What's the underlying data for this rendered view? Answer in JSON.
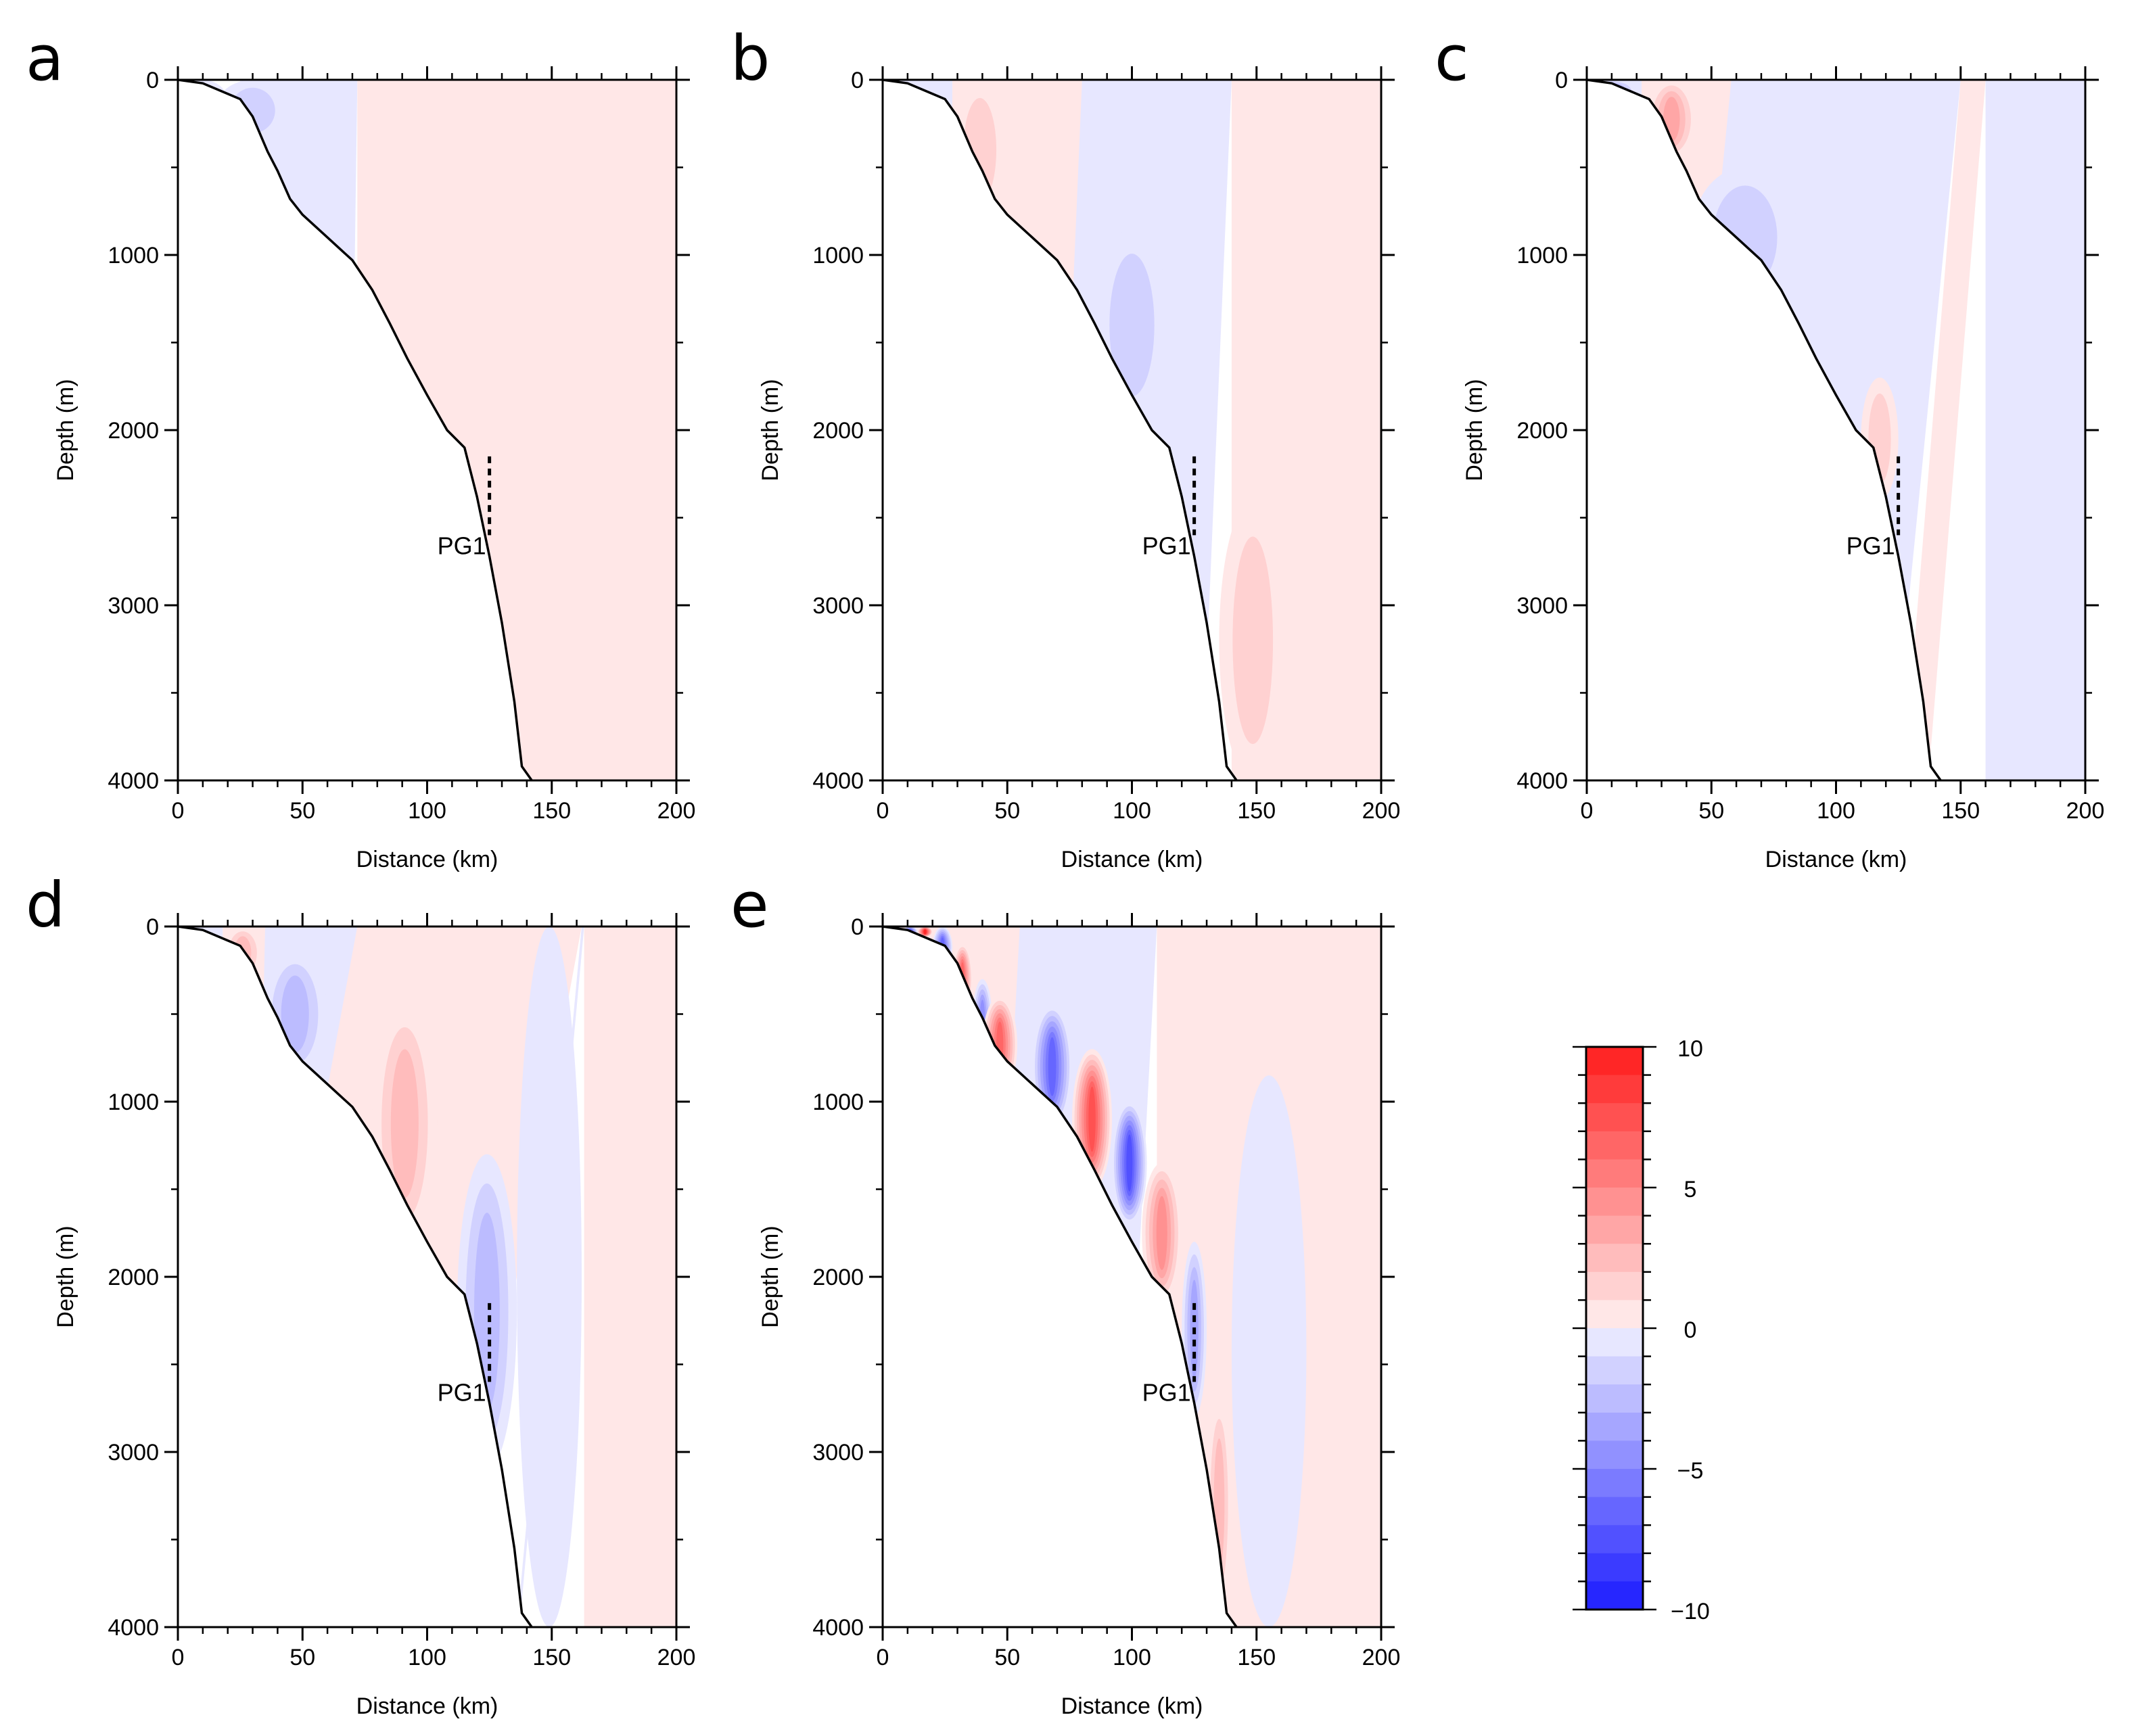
{
  "figure": {
    "description_type": "multi-panel cross-slope sections"
  },
  "chart_data": [
    {
      "id": "a",
      "type": "heatmap",
      "panel_label": "a",
      "xlabel": "Distance (km)",
      "ylabel": "Depth (m)",
      "xlim": [
        0,
        200
      ],
      "ylim": [
        4000,
        0
      ],
      "xticks": [
        0,
        50,
        100,
        150,
        200
      ],
      "yticks": [
        0,
        1000,
        2000,
        3000,
        4000
      ],
      "mooring": {
        "label": "PG1",
        "x": 125,
        "depth_top": 2150,
        "depth_bottom": 2600
      },
      "features": [
        {
          "kind": "cell",
          "x": 0,
          "x2": 20,
          "top": 0,
          "bottom": 250,
          "level": -3
        },
        {
          "kind": "cell",
          "x": 15,
          "x2": 45,
          "top": 0,
          "bottom": 350,
          "level": -2
        },
        {
          "kind": "band",
          "x0": 25,
          "x1": 72,
          "bottom_x1": 68,
          "level": -1
        },
        {
          "kind": "band",
          "x0": 72,
          "x1": 200,
          "bottom_x1": 200,
          "level": 1
        }
      ]
    },
    {
      "id": "b",
      "type": "heatmap",
      "panel_label": "b",
      "xlabel": "Distance (km)",
      "ylabel": "Depth (m)",
      "xlim": [
        0,
        200
      ],
      "ylim": [
        4000,
        0
      ],
      "xticks": [
        0,
        50,
        100,
        150,
        200
      ],
      "yticks": [
        0,
        1000,
        2000,
        3000,
        4000
      ],
      "mooring": {
        "label": "PG1",
        "x": 125,
        "depth_top": 2150,
        "depth_bottom": 2600
      },
      "features": [
        {
          "kind": "band",
          "x0": 0,
          "x1": 28,
          "bottom_x1": 28,
          "level": -1
        },
        {
          "kind": "band",
          "x0": 28,
          "x1": 80,
          "bottom_x1": 78,
          "level": 1
        },
        {
          "kind": "band",
          "x0": 80,
          "x1": 140,
          "bottom_x1": 128,
          "level": -1
        },
        {
          "kind": "band",
          "x0": 140,
          "x1": 200,
          "bottom_x1": 200,
          "level": 1
        },
        {
          "kind": "cell",
          "x": 28,
          "x2": 50,
          "top": 0,
          "bottom": 800,
          "level": 2
        },
        {
          "kind": "cell",
          "x": 85,
          "x2": 115,
          "top": 850,
          "bottom": 1950,
          "level": -2
        },
        {
          "kind": "cell",
          "x": 135,
          "x2": 162,
          "top": 2400,
          "bottom": 4000,
          "level": 2
        }
      ]
    },
    {
      "id": "c",
      "type": "heatmap",
      "panel_label": "c",
      "xlabel": "Distance (km)",
      "ylabel": "Depth (m)",
      "xlim": [
        0,
        200
      ],
      "ylim": [
        4000,
        0
      ],
      "xticks": [
        0,
        50,
        100,
        150,
        200
      ],
      "yticks": [
        0,
        1000,
        2000,
        3000,
        4000
      ],
      "mooring": {
        "label": "PG1",
        "x": 125,
        "depth_top": 2150,
        "depth_bottom": 2600
      },
      "features": [
        {
          "kind": "band",
          "x0": 0,
          "x1": 22,
          "bottom_x1": 22,
          "level": -1
        },
        {
          "kind": "band",
          "x0": 22,
          "x1": 58,
          "bottom_x1": 58,
          "level": 1
        },
        {
          "kind": "band",
          "x0": 58,
          "x1": 150,
          "bottom_x1": 122,
          "level": -1
        },
        {
          "kind": "band",
          "x0": 150,
          "x1": 160,
          "bottom_x1": 137,
          "level": 1
        },
        {
          "kind": "band",
          "x0": 160,
          "x1": 200,
          "bottom_x1": 200,
          "level": -1
        },
        {
          "kind": "cell",
          "x": 0,
          "x2": 20,
          "top": 0,
          "bottom": 120,
          "level": -4
        },
        {
          "kind": "cell",
          "x": 24,
          "x2": 44,
          "top": 0,
          "bottom": 450,
          "level": 4
        },
        {
          "kind": "cell",
          "x": 42,
          "x2": 85,
          "top": 500,
          "bottom": 1300,
          "level": -2
        },
        {
          "kind": "cell",
          "x": 110,
          "x2": 125,
          "top": 1700,
          "bottom": 2400,
          "level": 2
        }
      ]
    },
    {
      "id": "d",
      "type": "heatmap",
      "panel_label": "d",
      "xlabel": "Distance (km)",
      "ylabel": "Depth (m)",
      "xlim": [
        0,
        200
      ],
      "ylim": [
        4000,
        0
      ],
      "xticks": [
        0,
        50,
        100,
        150,
        200
      ],
      "yticks": [
        0,
        1000,
        2000,
        3000,
        4000
      ],
      "mooring": {
        "label": "PG1",
        "x": 125,
        "depth_top": 2150,
        "depth_bottom": 2600
      },
      "features": [
        {
          "kind": "band",
          "x0": 0,
          "x1": 18,
          "bottom_x1": 18,
          "level": -1
        },
        {
          "kind": "band",
          "x0": 18,
          "x1": 35,
          "bottom_x1": 35,
          "level": 1
        },
        {
          "kind": "band",
          "x0": 35,
          "x1": 72,
          "bottom_x1": 66,
          "level": -1
        },
        {
          "kind": "band",
          "x0": 72,
          "x1": 162,
          "bottom_x1": 110,
          "level": 1
        },
        {
          "kind": "band",
          "x0": 162,
          "x1": 163,
          "bottom_x1": 137,
          "level": -1
        },
        {
          "kind": "band",
          "x0": 163,
          "x1": 200,
          "bottom_x1": 200,
          "level": 1
        },
        {
          "kind": "cell",
          "x": 18,
          "x2": 34,
          "top": 0,
          "bottom": 300,
          "level": 3
        },
        {
          "kind": "cell",
          "x": 34,
          "x2": 60,
          "top": 150,
          "bottom": 850,
          "level": -3
        },
        {
          "kind": "cell",
          "x": 78,
          "x2": 104,
          "top": 450,
          "bottom": 1800,
          "level": 3
        },
        {
          "kind": "cell",
          "x": 112,
          "x2": 136,
          "top": 1300,
          "bottom": 3100,
          "level": -3
        },
        {
          "kind": "cell",
          "x": 136,
          "x2": 162,
          "top": 0,
          "bottom": 4000,
          "level": -1
        }
      ]
    },
    {
      "id": "e",
      "type": "heatmap",
      "panel_label": "e",
      "xlabel": "Distance (km)",
      "ylabel": "Depth (m)",
      "xlim": [
        0,
        200
      ],
      "ylim": [
        4000,
        0
      ],
      "xticks": [
        0,
        50,
        100,
        150,
        200
      ],
      "yticks": [
        0,
        1000,
        2000,
        3000,
        4000
      ],
      "mooring": {
        "label": "PG1",
        "x": 125,
        "depth_top": 2150,
        "depth_bottom": 2600
      },
      "features": [
        {
          "kind": "band",
          "x0": 0,
          "x1": 55,
          "bottom_x1": 55,
          "level": 1
        },
        {
          "kind": "band",
          "x0": 55,
          "x1": 110,
          "bottom_x1": 95,
          "level": -1
        },
        {
          "kind": "band",
          "x0": 110,
          "x1": 200,
          "bottom_x1": 200,
          "level": 1
        },
        {
          "kind": "cell",
          "x": 140,
          "x2": 170,
          "top": 850,
          "bottom": 4000,
          "level": -1
        },
        {
          "kind": "cell",
          "x": 2,
          "x2": 8,
          "top": 0,
          "bottom": 60,
          "level": -10
        },
        {
          "kind": "cell",
          "x": 8,
          "x2": 14,
          "top": 0,
          "bottom": 60,
          "level": -8
        },
        {
          "kind": "cell",
          "x": 14,
          "x2": 20,
          "top": 0,
          "bottom": 60,
          "level": 10
        },
        {
          "kind": "cell",
          "x": 20,
          "x2": 28,
          "top": 0,
          "bottom": 240,
          "level": -7
        },
        {
          "kind": "cell",
          "x": 28,
          "x2": 36,
          "top": 100,
          "bottom": 500,
          "level": 7
        },
        {
          "kind": "cell",
          "x": 36,
          "x2": 44,
          "top": 300,
          "bottom": 800,
          "level": -5
        },
        {
          "kind": "cell",
          "x": 40,
          "x2": 54,
          "top": 400,
          "bottom": 950,
          "level": 7
        },
        {
          "kind": "cell",
          "x": 60,
          "x2": 76,
          "top": 450,
          "bottom": 1150,
          "level": -7
        },
        {
          "kind": "cell",
          "x": 76,
          "x2": 92,
          "top": 700,
          "bottom": 1500,
          "level": 8
        },
        {
          "kind": "cell",
          "x": 92,
          "x2": 106,
          "top": 1000,
          "bottom": 1700,
          "level": -8
        },
        {
          "kind": "cell",
          "x": 104,
          "x2": 120,
          "top": 1350,
          "bottom": 2150,
          "level": 5
        },
        {
          "kind": "cell",
          "x": 120,
          "x2": 130,
          "top": 1800,
          "bottom": 2800,
          "level": -4
        },
        {
          "kind": "cell",
          "x": 130,
          "x2": 140,
          "top": 2700,
          "bottom": 3900,
          "level": 3
        }
      ]
    }
  ],
  "bathymetry": [
    [
      0,
      0
    ],
    [
      10,
      20
    ],
    [
      20,
      80
    ],
    [
      25,
      110
    ],
    [
      30,
      210
    ],
    [
      33,
      310
    ],
    [
      36,
      410
    ],
    [
      40,
      520
    ],
    [
      45,
      680
    ],
    [
      50,
      770
    ],
    [
      60,
      900
    ],
    [
      70,
      1030
    ],
    [
      78,
      1200
    ],
    [
      85,
      1390
    ],
    [
      92,
      1590
    ],
    [
      100,
      1800
    ],
    [
      108,
      2000
    ],
    [
      115,
      2100
    ],
    [
      120,
      2380
    ],
    [
      125,
      2720
    ],
    [
      130,
      3100
    ],
    [
      135,
      3550
    ],
    [
      138,
      3920
    ],
    [
      142,
      4000
    ]
  ],
  "colorbar": {
    "min": -10,
    "max": 10,
    "step": 1,
    "tick_labels": [
      "10",
      "5",
      "0",
      "−5",
      "−10"
    ],
    "tick_values": [
      10,
      5,
      0,
      -5,
      -10
    ],
    "colors": {
      "positive_max": "#ff1b1b",
      "negative_max": "#1b1bff",
      "zero": "#ffffff"
    }
  }
}
